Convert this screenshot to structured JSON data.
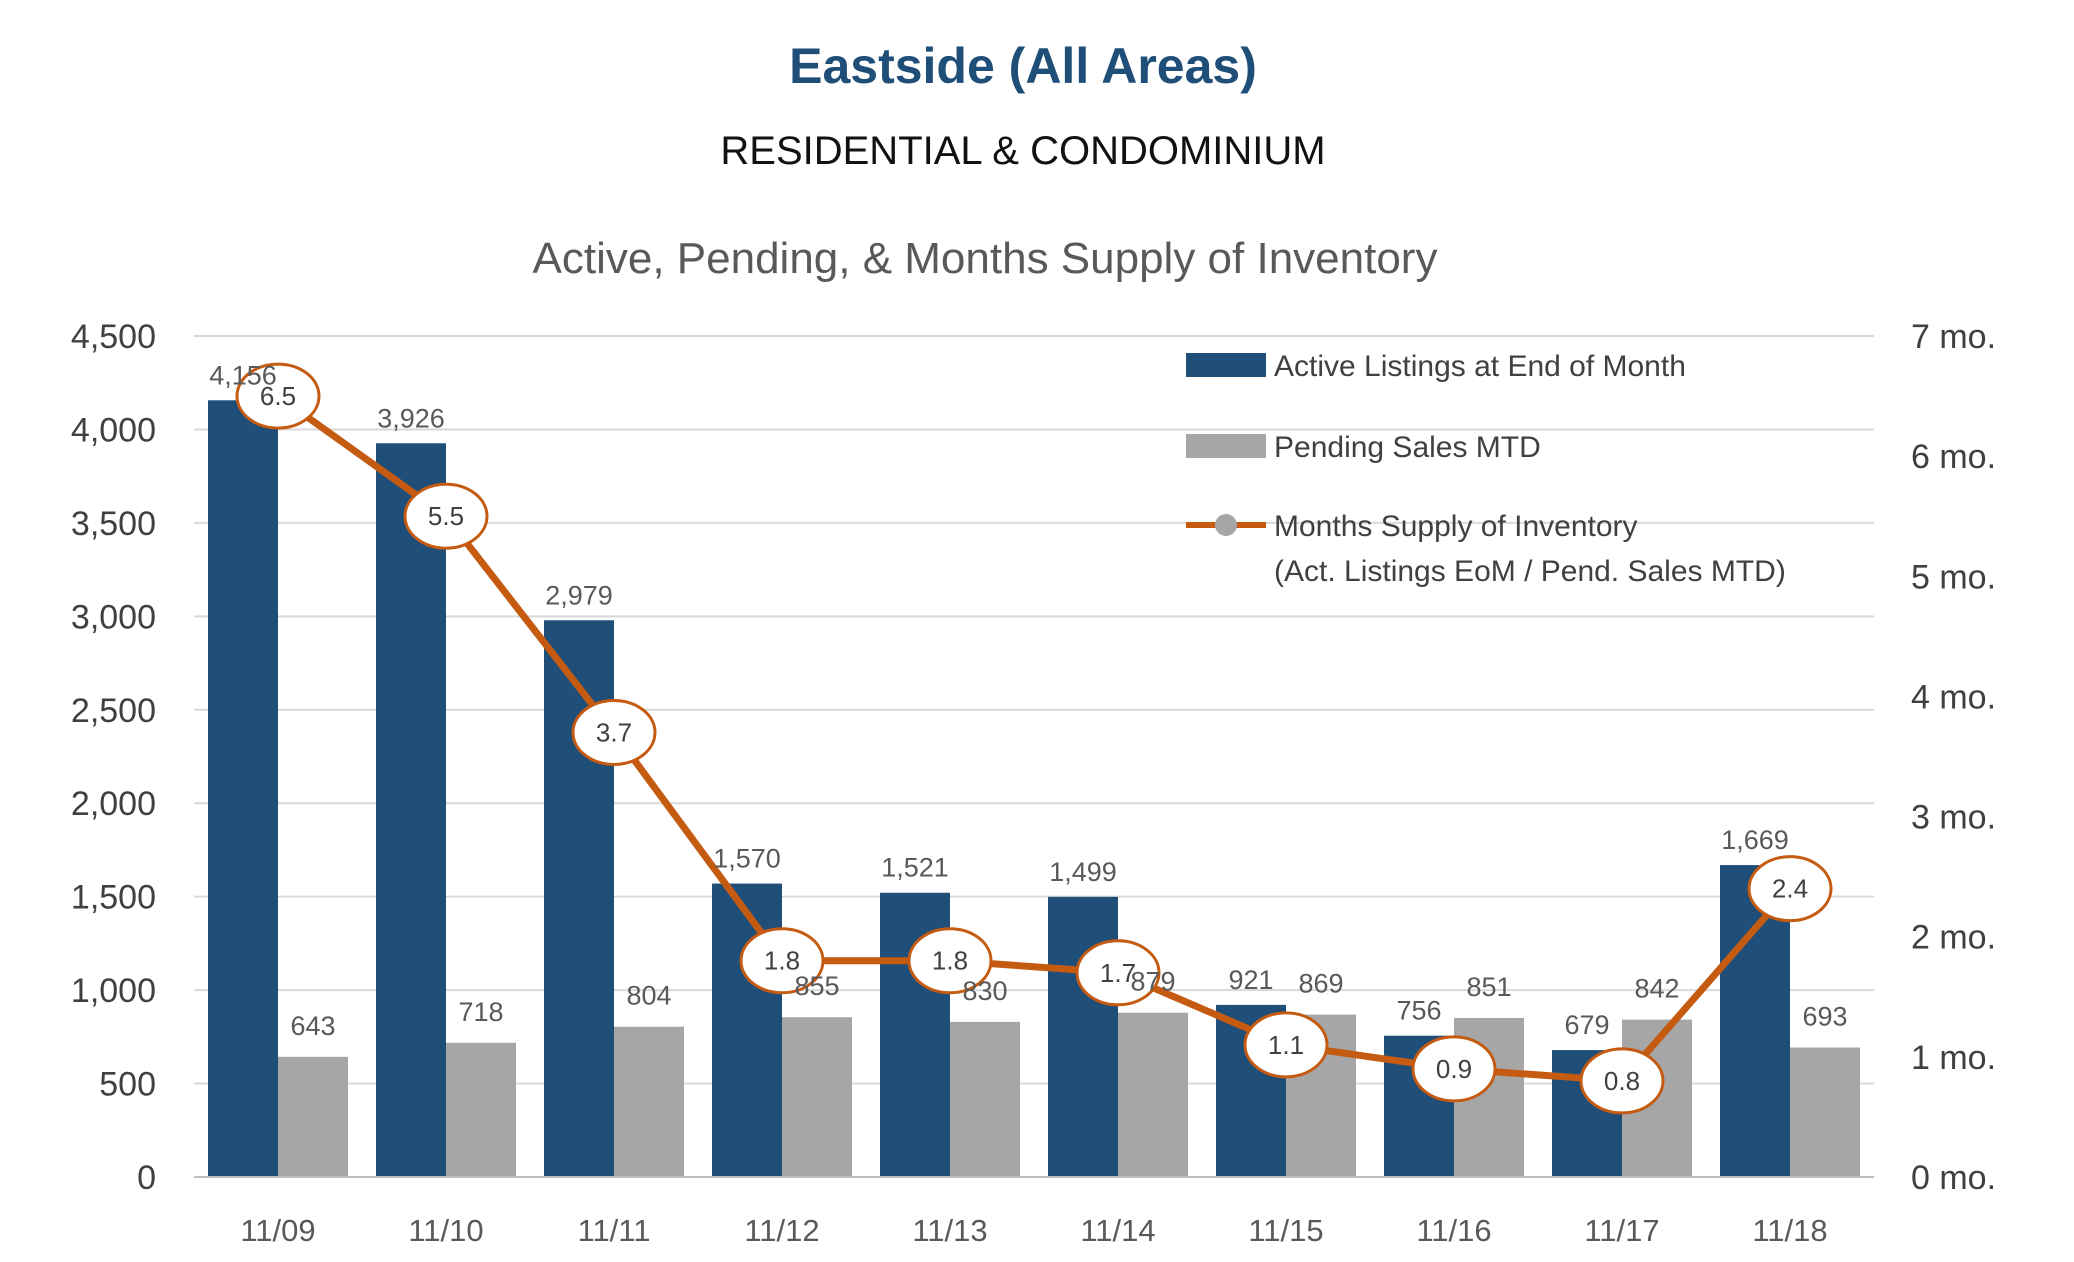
{
  "header": {
    "title": "Eastside (All Areas)",
    "subtitle": "RESIDENTIAL & CONDOMINIUM"
  },
  "chart_data": {
    "type": "bar",
    "title": "Active, Pending, & Months Supply of Inventory",
    "categories": [
      "11/09",
      "11/10",
      "11/11",
      "11/12",
      "11/13",
      "11/14",
      "11/15",
      "11/16",
      "11/17",
      "11/18"
    ],
    "series": [
      {
        "name": "Active Listings at End of Month",
        "type": "bar",
        "axis": "left",
        "color": "#1f4e79",
        "values": [
          4156,
          3926,
          2979,
          1570,
          1521,
          1499,
          921,
          756,
          679,
          1669
        ],
        "labels": [
          "4,156",
          "3,926",
          "2,979",
          "1,570",
          "1,521",
          "1,499",
          "921",
          "756",
          "679",
          "1,669"
        ]
      },
      {
        "name": "Pending Sales MTD",
        "type": "bar",
        "axis": "left",
        "color": "#a6a6a6",
        "values": [
          643,
          718,
          804,
          855,
          830,
          879,
          869,
          851,
          842,
          693
        ],
        "labels": [
          "643",
          "718",
          "804",
          "855",
          "830",
          "879",
          "869",
          "851",
          "842",
          "693"
        ]
      },
      {
        "name": "Months Supply of Inventory",
        "name_line2": "(Act. Listings EoM / Pend. Sales MTD)",
        "type": "line",
        "axis": "right",
        "color": "#c55a11",
        "values": [
          6.5,
          5.5,
          3.7,
          1.8,
          1.8,
          1.7,
          1.1,
          0.9,
          0.8,
          2.4
        ],
        "labels": [
          "6.5",
          "5.5",
          "3.7",
          "1.8",
          "1.8",
          "1.7",
          "1.1",
          "0.9",
          "0.8",
          "2.4"
        ]
      }
    ],
    "y_left": {
      "min": 0,
      "max": 4500,
      "step": 500,
      "tick_labels": [
        "0",
        "500",
        "1,000",
        "1,500",
        "2,000",
        "2,500",
        "3,000",
        "3,500",
        "4,000",
        "4,500"
      ]
    },
    "y_right": {
      "min": 0,
      "max": 7,
      "step": 1,
      "tick_labels": [
        "0 mo.",
        "1 mo.",
        "2 mo.",
        "3 mo.",
        "4 mo.",
        "5 mo.",
        "6 mo.",
        "7 mo."
      ]
    },
    "grid": true,
    "legend_position": "top-right",
    "colors": {
      "active": "#1f4e79",
      "pending": "#a6a6a6",
      "line": "#c55a11",
      "marker": "#a6a6a6",
      "grid": "#d9d9d9"
    }
  }
}
